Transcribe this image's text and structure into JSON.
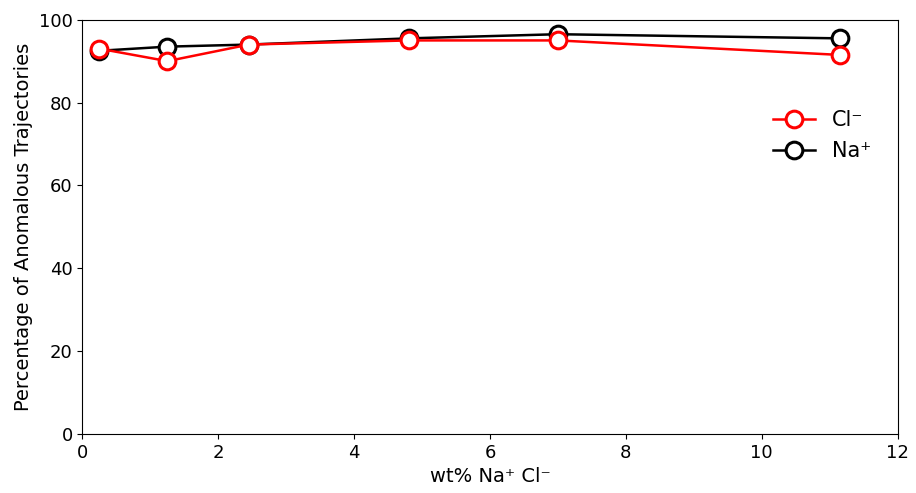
{
  "chart_data": {
    "type": "line",
    "x_label": "wt% Na⁺ Cl⁻",
    "y_label": "Percentage of Anomalous Trajectories",
    "xlim": [
      0,
      12
    ],
    "xticks": [
      0,
      2,
      4,
      6,
      8,
      10,
      12
    ],
    "ylim": [
      0,
      100
    ],
    "yticks": [
      0,
      20,
      40,
      60,
      80,
      100
    ],
    "legend": "right",
    "series": [
      {
        "name": "Cl⁻",
        "color": "#ff0000",
        "marker": "o",
        "line_style": "solid",
        "x": [
          0.25,
          1.25,
          2.45,
          4.8,
          7.0,
          11.15
        ],
        "values": [
          93,
          90,
          94,
          95,
          95,
          91.5
        ]
      },
      {
        "name": "Na⁺",
        "color": "#000000",
        "marker": "o",
        "line_style": "solid",
        "x": [
          0.25,
          1.25,
          2.45,
          4.8,
          7.0,
          11.15
        ],
        "values": [
          92.5,
          93.5,
          94,
          95.5,
          96.5,
          95.5
        ]
      }
    ]
  }
}
